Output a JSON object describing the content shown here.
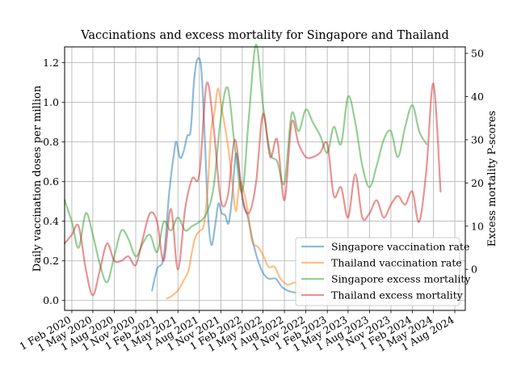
{
  "chart_data": {
    "type": "line",
    "title": "Vaccinations and excess mortality for Singapore and Thailand",
    "ylabel": "Daily vaccination doses per million",
    "y2label": "Excess mortality P-scores",
    "xlabel": "",
    "ylim": [
      -0.05,
      1.28
    ],
    "y2lim": [
      -9.5,
      51.5
    ],
    "xlim": [
      "2020-01-01",
      "2024-09-15"
    ],
    "grid": true,
    "legend_position": "lower-right",
    "x_ticks": [
      {
        "date": "2020-02-01",
        "label": "1 Feb 2020"
      },
      {
        "date": "2020-05-01",
        "label": "1 May 2020"
      },
      {
        "date": "2020-08-01",
        "label": "1 Aug 2020"
      },
      {
        "date": "2020-11-01",
        "label": "1 Nov 2020"
      },
      {
        "date": "2021-02-01",
        "label": "1 Feb 2021"
      },
      {
        "date": "2021-05-01",
        "label": "1 May 2021"
      },
      {
        "date": "2021-08-01",
        "label": "1 Aug 2021"
      },
      {
        "date": "2021-11-01",
        "label": "1 Nov 2021"
      },
      {
        "date": "2022-02-01",
        "label": "1 Feb 2022"
      },
      {
        "date": "2022-05-01",
        "label": "1 May 2022"
      },
      {
        "date": "2022-08-01",
        "label": "1 Aug 2022"
      },
      {
        "date": "2022-11-01",
        "label": "1 Nov 2022"
      },
      {
        "date": "2023-02-01",
        "label": "1 Feb 2023"
      },
      {
        "date": "2023-05-01",
        "label": "1 May 2023"
      },
      {
        "date": "2023-08-01",
        "label": "1 Aug 2023"
      },
      {
        "date": "2023-11-01",
        "label": "1 Nov 2023"
      },
      {
        "date": "2024-02-01",
        "label": "1 Feb 2024"
      },
      {
        "date": "2024-05-01",
        "label": "1 May 2024"
      },
      {
        "date": "2024-08-01",
        "label": "1 Aug 2024"
      }
    ],
    "y_ticks": [
      {
        "value": 0.0,
        "label": "0.0"
      },
      {
        "value": 0.2,
        "label": "0.2"
      },
      {
        "value": 0.4,
        "label": "0.4"
      },
      {
        "value": 0.6,
        "label": "0.6"
      },
      {
        "value": 0.8,
        "label": "0.8"
      },
      {
        "value": 1.0,
        "label": "1.0"
      },
      {
        "value": 1.2,
        "label": "1.2"
      }
    ],
    "y2_ticks": [
      {
        "value": 0,
        "label": "0"
      },
      {
        "value": 10,
        "label": "10"
      },
      {
        "value": 20,
        "label": "20"
      },
      {
        "value": 30,
        "label": "30"
      },
      {
        "value": 40,
        "label": "40"
      },
      {
        "value": 50,
        "label": "50"
      }
    ],
    "series": [
      {
        "name": "Singapore vaccination rate",
        "axis": "left",
        "color": "#1f77b4",
        "points": [
          [
            "2021-01-10",
            0.05
          ],
          [
            "2021-02-01",
            0.16
          ],
          [
            "2021-03-01",
            0.22
          ],
          [
            "2021-03-25",
            0.55
          ],
          [
            "2021-04-15",
            0.75
          ],
          [
            "2021-04-25",
            0.8
          ],
          [
            "2021-05-10",
            0.72
          ],
          [
            "2021-05-25",
            0.75
          ],
          [
            "2021-06-10",
            0.83
          ],
          [
            "2021-06-25",
            0.86
          ],
          [
            "2021-07-10",
            1.12
          ],
          [
            "2021-07-25",
            1.22
          ],
          [
            "2021-08-10",
            1.16
          ],
          [
            "2021-08-25",
            0.8
          ],
          [
            "2021-09-08",
            0.42
          ],
          [
            "2021-09-22",
            0.28
          ],
          [
            "2021-10-08",
            0.38
          ],
          [
            "2021-10-22",
            0.49
          ],
          [
            "2021-11-05",
            0.44
          ],
          [
            "2021-11-20",
            0.43
          ],
          [
            "2021-12-05",
            0.39
          ],
          [
            "2021-12-20",
            0.53
          ],
          [
            "2022-01-05",
            0.74
          ],
          [
            "2022-01-20",
            0.64
          ],
          [
            "2022-02-05",
            0.49
          ],
          [
            "2022-02-25",
            0.42
          ],
          [
            "2022-03-20",
            0.29
          ],
          [
            "2022-04-10",
            0.2
          ],
          [
            "2022-05-01",
            0.14
          ],
          [
            "2022-05-25",
            0.11
          ],
          [
            "2022-06-25",
            0.11
          ],
          [
            "2022-07-20",
            0.07
          ],
          [
            "2022-08-15",
            0.05
          ],
          [
            "2022-09-15",
            0.04
          ],
          [
            "2022-10-15",
            0.04
          ]
        ]
      },
      {
        "name": "Thailand vaccination rate",
        "axis": "left",
        "color": "#ff7f0e",
        "points": [
          [
            "2021-03-15",
            0.01
          ],
          [
            "2021-04-01",
            0.02
          ],
          [
            "2021-05-01",
            0.05
          ],
          [
            "2021-05-25",
            0.1
          ],
          [
            "2021-06-15",
            0.15
          ],
          [
            "2021-07-01",
            0.25
          ],
          [
            "2021-07-15",
            0.32
          ],
          [
            "2021-08-01",
            0.35
          ],
          [
            "2021-08-20",
            0.38
          ],
          [
            "2021-09-05",
            0.55
          ],
          [
            "2021-09-20",
            0.85
          ],
          [
            "2021-10-05",
            0.95
          ],
          [
            "2021-10-20",
            1.07
          ],
          [
            "2021-11-05",
            0.97
          ],
          [
            "2021-11-20",
            0.87
          ],
          [
            "2021-12-05",
            0.75
          ],
          [
            "2021-12-20",
            0.6
          ],
          [
            "2022-01-05",
            0.45
          ],
          [
            "2022-01-20",
            0.59
          ],
          [
            "2022-02-05",
            0.56
          ],
          [
            "2022-02-25",
            0.45
          ],
          [
            "2022-03-15",
            0.3
          ],
          [
            "2022-04-10",
            0.27
          ],
          [
            "2022-05-01",
            0.23
          ],
          [
            "2022-05-25",
            0.17
          ],
          [
            "2022-06-20",
            0.17
          ],
          [
            "2022-07-15",
            0.11
          ],
          [
            "2022-08-15",
            0.08
          ],
          [
            "2022-09-15",
            0.09
          ],
          [
            "2022-10-15",
            0.06
          ],
          [
            "2022-11-10",
            0.05
          ]
        ]
      },
      {
        "name": "Singapore excess mortality",
        "axis": "right",
        "color": "#2ca02c",
        "points": [
          [
            "2020-01-01",
            16
          ],
          [
            "2020-02-01",
            11
          ],
          [
            "2020-03-01",
            5
          ],
          [
            "2020-04-01",
            13
          ],
          [
            "2020-05-01",
            8
          ],
          [
            "2020-06-01",
            1
          ],
          [
            "2020-07-01",
            -3
          ],
          [
            "2020-08-01",
            3
          ],
          [
            "2020-09-01",
            9
          ],
          [
            "2020-10-01",
            7
          ],
          [
            "2020-11-01",
            3
          ],
          [
            "2020-12-01",
            6
          ],
          [
            "2021-01-01",
            8
          ],
          [
            "2021-02-01",
            4
          ],
          [
            "2021-03-01",
            11
          ],
          [
            "2021-04-01",
            9
          ],
          [
            "2021-05-01",
            12
          ],
          [
            "2021-06-01",
            9
          ],
          [
            "2021-07-01",
            10
          ],
          [
            "2021-08-01",
            11
          ],
          [
            "2021-09-01",
            13
          ],
          [
            "2021-10-01",
            19
          ],
          [
            "2021-11-01",
            35
          ],
          [
            "2021-12-01",
            42
          ],
          [
            "2022-01-01",
            28
          ],
          [
            "2022-02-01",
            18
          ],
          [
            "2022-03-01",
            35
          ],
          [
            "2022-04-01",
            52
          ],
          [
            "2022-05-01",
            38
          ],
          [
            "2022-06-01",
            27
          ],
          [
            "2022-07-01",
            25
          ],
          [
            "2022-08-01",
            20
          ],
          [
            "2022-09-01",
            36
          ],
          [
            "2022-10-01",
            32
          ],
          [
            "2022-11-01",
            37
          ],
          [
            "2022-12-01",
            34
          ],
          [
            "2023-01-01",
            31
          ],
          [
            "2023-02-01",
            27
          ],
          [
            "2023-03-01",
            33
          ],
          [
            "2023-04-01",
            29
          ],
          [
            "2023-05-01",
            40
          ],
          [
            "2023-06-01",
            34
          ],
          [
            "2023-07-01",
            24
          ],
          [
            "2023-08-01",
            19
          ],
          [
            "2023-09-01",
            24
          ],
          [
            "2023-10-01",
            30
          ],
          [
            "2023-11-01",
            32
          ],
          [
            "2023-12-01",
            26
          ],
          [
            "2024-01-01",
            33
          ],
          [
            "2024-02-01",
            38
          ],
          [
            "2024-03-01",
            32
          ],
          [
            "2024-04-01",
            29
          ]
        ]
      },
      {
        "name": "Thailand excess mortality",
        "axis": "right",
        "color": "#d62728",
        "points": [
          [
            "2020-01-01",
            6
          ],
          [
            "2020-02-01",
            8
          ],
          [
            "2020-03-01",
            10
          ],
          [
            "2020-04-01",
            0
          ],
          [
            "2020-05-01",
            -6
          ],
          [
            "2020-06-01",
            0
          ],
          [
            "2020-07-01",
            6
          ],
          [
            "2020-08-01",
            2
          ],
          [
            "2020-09-01",
            2
          ],
          [
            "2020-10-01",
            3
          ],
          [
            "2020-11-01",
            1
          ],
          [
            "2020-12-01",
            7
          ],
          [
            "2021-01-01",
            13
          ],
          [
            "2021-02-01",
            11
          ],
          [
            "2021-03-01",
            2
          ],
          [
            "2021-04-01",
            14
          ],
          [
            "2021-05-01",
            0
          ],
          [
            "2021-06-01",
            14
          ],
          [
            "2021-07-01",
            21
          ],
          [
            "2021-08-01",
            22
          ],
          [
            "2021-09-01",
            43
          ],
          [
            "2021-10-01",
            33
          ],
          [
            "2021-11-01",
            16
          ],
          [
            "2021-12-01",
            17
          ],
          [
            "2022-01-01",
            30
          ],
          [
            "2022-02-01",
            17
          ],
          [
            "2022-03-01",
            13
          ],
          [
            "2022-04-01",
            20
          ],
          [
            "2022-05-01",
            36
          ],
          [
            "2022-06-01",
            26
          ],
          [
            "2022-07-01",
            30
          ],
          [
            "2022-08-01",
            16
          ],
          [
            "2022-09-01",
            34
          ],
          [
            "2022-10-01",
            29
          ],
          [
            "2022-11-01",
            26
          ],
          [
            "2022-12-01",
            26
          ],
          [
            "2023-01-01",
            27
          ],
          [
            "2023-02-01",
            29
          ],
          [
            "2023-03-01",
            17
          ],
          [
            "2023-04-01",
            19
          ],
          [
            "2023-05-01",
            12
          ],
          [
            "2023-06-01",
            22
          ],
          [
            "2023-07-01",
            12
          ],
          [
            "2023-08-01",
            13
          ],
          [
            "2023-09-01",
            16
          ],
          [
            "2023-10-01",
            12
          ],
          [
            "2023-11-01",
            15
          ],
          [
            "2023-12-01",
            17
          ],
          [
            "2024-01-01",
            15
          ],
          [
            "2024-02-01",
            18
          ],
          [
            "2024-03-01",
            11
          ],
          [
            "2024-04-01",
            23
          ],
          [
            "2024-05-01",
            43
          ],
          [
            "2024-06-01",
            18
          ]
        ]
      }
    ]
  }
}
